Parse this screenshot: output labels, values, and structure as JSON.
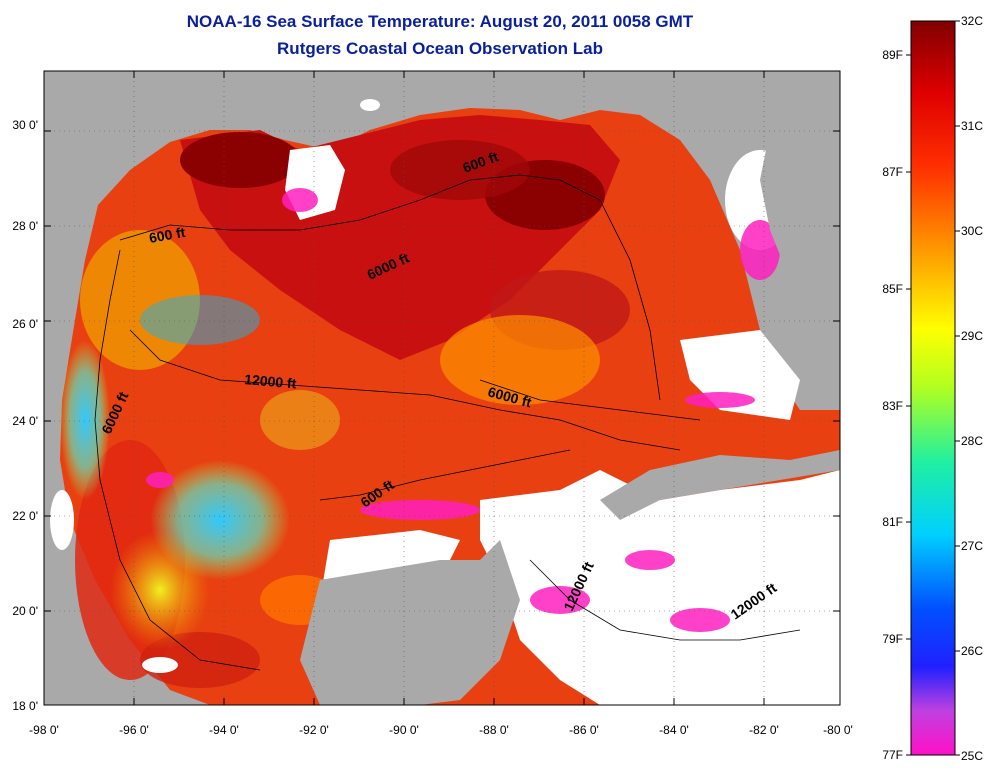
{
  "title": "NOAA-16 Sea Surface Temperature:  August 20, 2011 0058 GMT",
  "subtitle": "Rutgers Coastal Ocean Observation Lab",
  "lon_labels": [
    "-98 0'",
    "-96 0'",
    "-94 0'",
    "-92 0'",
    "-90 0'",
    "-88 0'",
    "-86 0'",
    "-84 0'",
    "-82 0'",
    "-80 0'"
  ],
  "lat_labels": [
    "30 0'",
    "28 0'",
    "26 0'",
    "24 0'",
    "22 0'",
    "20 0'",
    "18 0'"
  ],
  "colorbar": {
    "celsius": [
      "32C",
      "31C",
      "30C",
      "29C",
      "28C",
      "27C",
      "26C",
      "25C"
    ],
    "fahrenheit": [
      "89F",
      "87F",
      "85F",
      "83F",
      "81F",
      "79F",
      "77F"
    ],
    "range_c": [
      25,
      32
    ]
  },
  "contours": [
    "600 ft",
    "600 ft",
    "6000 ft",
    "12000 ft",
    "6000 ft",
    "6000 ft",
    "600 ft",
    "12000 ft",
    "12000 ft"
  ],
  "colors": {
    "title": "#0a1f9c",
    "land": "#a9a9a9",
    "cloud": "#ffffff"
  }
}
